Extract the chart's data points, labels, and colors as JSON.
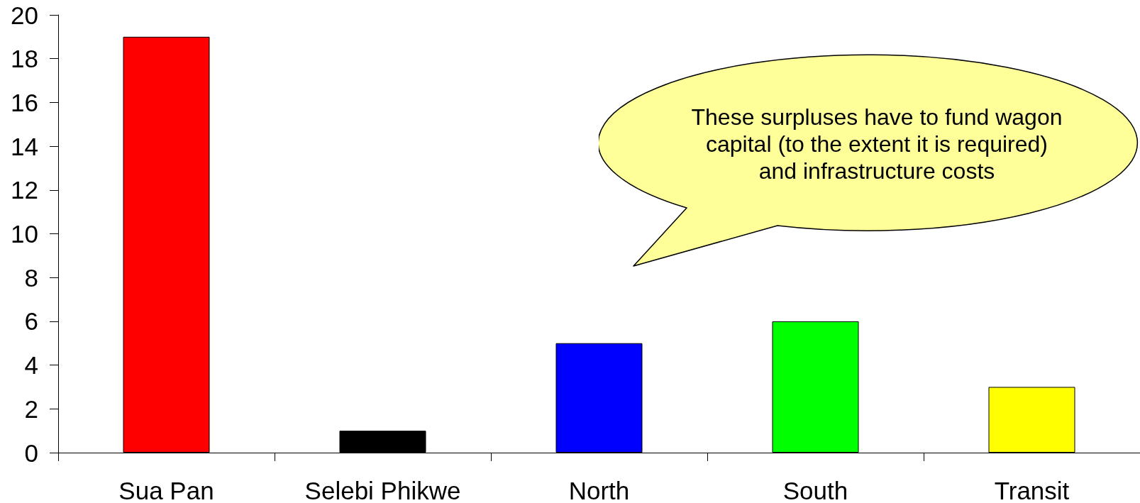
{
  "chart_data": {
    "type": "bar",
    "categories": [
      "Sua Pan",
      "Selebi Phikwe",
      "North",
      "South",
      "Transit"
    ],
    "values": [
      19,
      1,
      5,
      6,
      3
    ],
    "colors": [
      "#ff0000",
      "#000000",
      "#0000ff",
      "#00ff00",
      "#ffff00"
    ],
    "ylim": [
      0,
      20
    ],
    "yticks": [
      0,
      2,
      4,
      6,
      8,
      10,
      12,
      14,
      16,
      18,
      20
    ],
    "grid": false,
    "annotations": [
      "These surpluses have to fund wagon capital (to the extent it is required) and infrastructure costs"
    ]
  }
}
